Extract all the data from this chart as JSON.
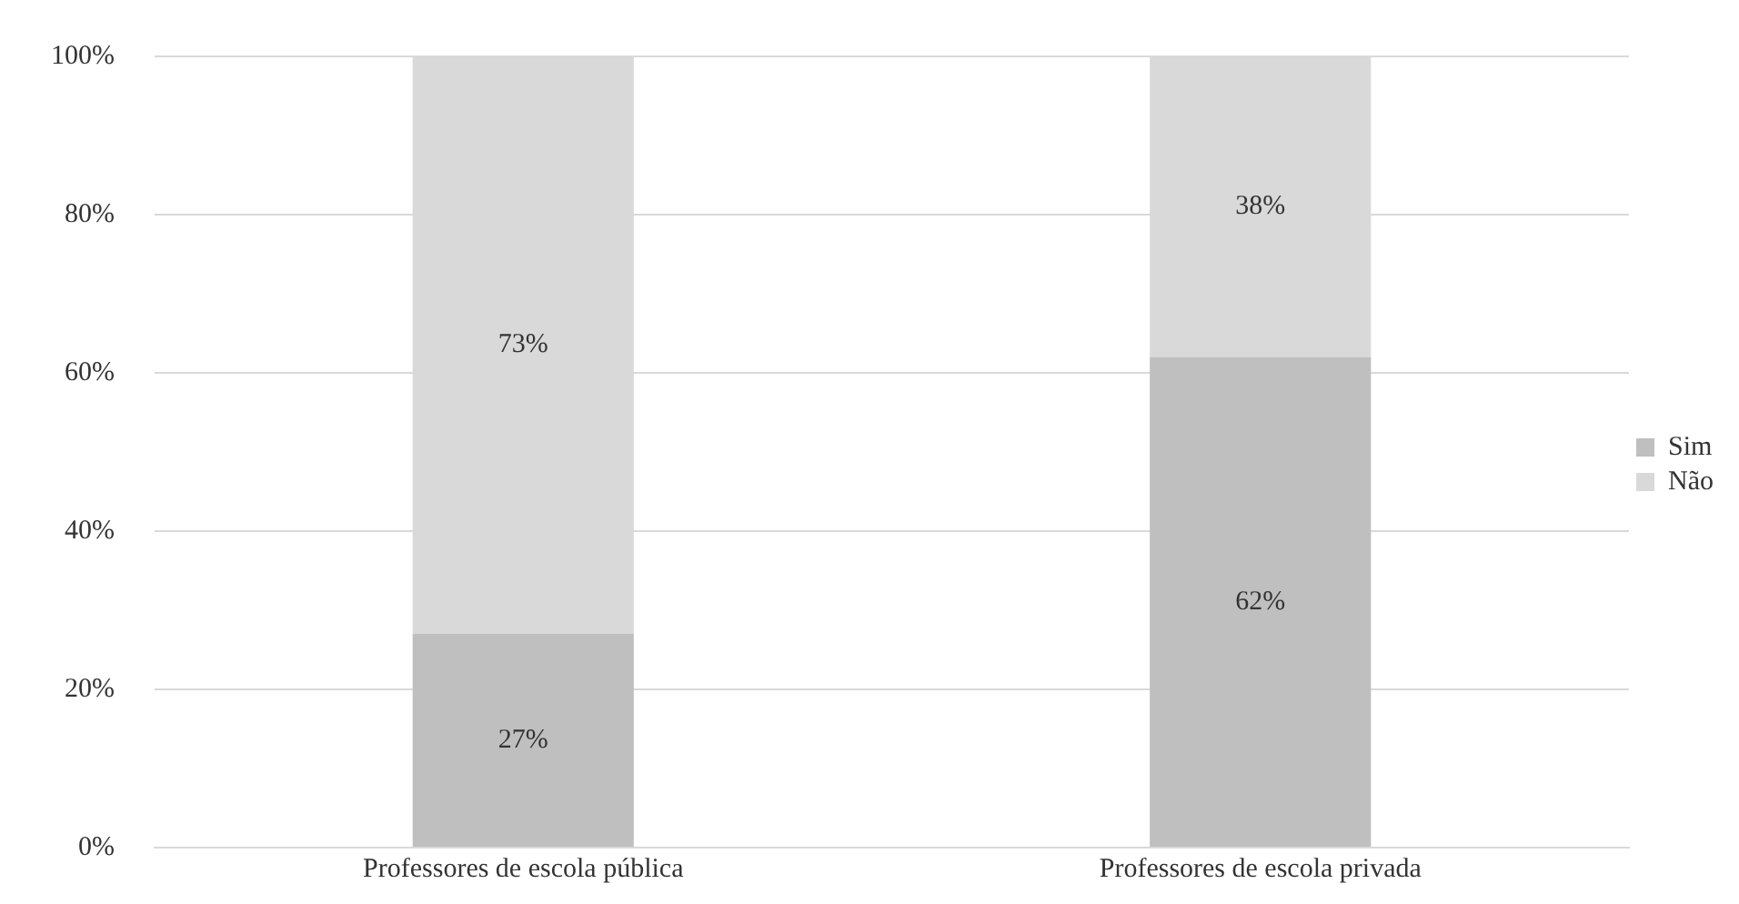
{
  "chart_data": {
    "type": "bar",
    "stacked": true,
    "categories": [
      "Professores de escola pública",
      "Professores de escola privada"
    ],
    "series": [
      {
        "name": "Sim",
        "color": "#bfbfbf",
        "values": [
          27,
          62
        ],
        "value_labels": [
          "27%",
          "62%"
        ]
      },
      {
        "name": "Não",
        "color": "#d9d9d9",
        "values": [
          73,
          38
        ],
        "value_labels": [
          "73%",
          "38%"
        ]
      }
    ],
    "ylim": [
      0,
      100
    ],
    "yticks": [
      {
        "value": 0,
        "label": "0%"
      },
      {
        "value": 20,
        "label": "20%"
      },
      {
        "value": 40,
        "label": "40%"
      },
      {
        "value": 60,
        "label": "60%"
      },
      {
        "value": 80,
        "label": "80%"
      },
      {
        "value": 100,
        "label": "100%"
      }
    ],
    "grid": "y",
    "legend": "right"
  }
}
